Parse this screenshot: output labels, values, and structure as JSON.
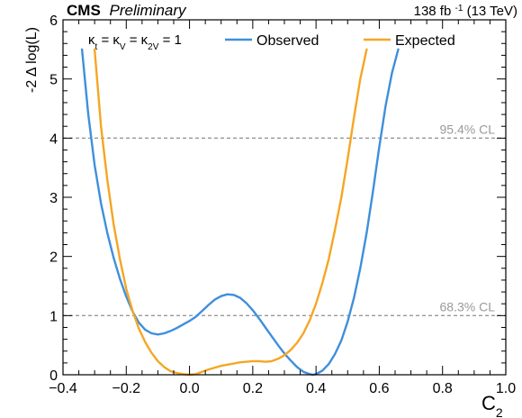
{
  "header": {
    "experiment": "CMS",
    "status": "Preliminary",
    "lumi": "138 fb",
    "lumi_exp": "-1",
    "energy": " (13 TeV)"
  },
  "chart_data": {
    "type": "line",
    "title": "",
    "xlabel": "C",
    "xlabel_sub": "2",
    "ylabel": "-2 Δ log(L)",
    "xlim": [
      -0.4,
      1.0
    ],
    "ylim": [
      0,
      6
    ],
    "x_ticks": [
      -0.4,
      -0.2,
      0.0,
      0.2,
      0.4,
      0.6,
      0.8,
      1.0
    ],
    "x_tick_labels": [
      "−0.4",
      "−0.2",
      "0.0",
      "0.2",
      "0.4",
      "0.6",
      "0.8",
      "1.0"
    ],
    "y_ticks": [
      0,
      1,
      2,
      3,
      4,
      5,
      6
    ],
    "y_tick_labels": [
      "0",
      "1",
      "2",
      "3",
      "4",
      "5",
      "6"
    ],
    "grid": false,
    "legend_position": "top",
    "condition_label": {
      "k1": "κ",
      "k1_sub": "t",
      "eq1": " = ",
      "k2": "κ",
      "k2_sub": "V",
      "eq2": " = ",
      "k3": "κ",
      "k3_sub": "2V",
      "eq3": " = 1"
    },
    "reference_lines": [
      {
        "y": 4,
        "label": "95.4% CL",
        "color": "#999999"
      },
      {
        "y": 1,
        "label": "68.3% CL",
        "color": "#999999"
      }
    ],
    "series": [
      {
        "name": "Observed",
        "color": "#3f8fdc",
        "points": [
          [
            -0.34,
            5.5
          ],
          [
            -0.32,
            4.4
          ],
          [
            -0.3,
            3.55
          ],
          [
            -0.28,
            2.9
          ],
          [
            -0.26,
            2.4
          ],
          [
            -0.24,
            1.98
          ],
          [
            -0.22,
            1.62
          ],
          [
            -0.2,
            1.32
          ],
          [
            -0.18,
            1.07
          ],
          [
            -0.16,
            0.88
          ],
          [
            -0.14,
            0.76
          ],
          [
            -0.12,
            0.7
          ],
          [
            -0.1,
            0.68
          ],
          [
            -0.08,
            0.7
          ],
          [
            -0.06,
            0.74
          ],
          [
            -0.04,
            0.79
          ],
          [
            -0.02,
            0.85
          ],
          [
            0.0,
            0.91
          ],
          [
            0.02,
            0.98
          ],
          [
            0.04,
            1.08
          ],
          [
            0.06,
            1.18
          ],
          [
            0.08,
            1.27
          ],
          [
            0.1,
            1.33
          ],
          [
            0.12,
            1.36
          ],
          [
            0.14,
            1.35
          ],
          [
            0.16,
            1.3
          ],
          [
            0.18,
            1.21
          ],
          [
            0.2,
            1.09
          ],
          [
            0.22,
            0.95
          ],
          [
            0.24,
            0.8
          ],
          [
            0.26,
            0.65
          ],
          [
            0.28,
            0.5
          ],
          [
            0.3,
            0.36
          ],
          [
            0.32,
            0.24
          ],
          [
            0.34,
            0.13
          ],
          [
            0.36,
            0.05
          ],
          [
            0.38,
            0.01
          ],
          [
            0.39,
            0.0
          ],
          [
            0.4,
            0.01
          ],
          [
            0.42,
            0.07
          ],
          [
            0.44,
            0.18
          ],
          [
            0.46,
            0.35
          ],
          [
            0.48,
            0.58
          ],
          [
            0.5,
            0.9
          ],
          [
            0.52,
            1.3
          ],
          [
            0.54,
            1.8
          ],
          [
            0.56,
            2.4
          ],
          [
            0.58,
            3.1
          ],
          [
            0.6,
            3.85
          ],
          [
            0.62,
            4.55
          ],
          [
            0.64,
            5.1
          ],
          [
            0.66,
            5.5
          ]
        ]
      },
      {
        "name": "Expected",
        "color": "#f5a623",
        "points": [
          [
            -0.3,
            5.5
          ],
          [
            -0.29,
            4.85
          ],
          [
            -0.28,
            4.2
          ],
          [
            -0.26,
            3.3
          ],
          [
            -0.24,
            2.55
          ],
          [
            -0.22,
            1.95
          ],
          [
            -0.2,
            1.45
          ],
          [
            -0.18,
            1.08
          ],
          [
            -0.16,
            0.78
          ],
          [
            -0.14,
            0.55
          ],
          [
            -0.12,
            0.37
          ],
          [
            -0.1,
            0.23
          ],
          [
            -0.08,
            0.13
          ],
          [
            -0.06,
            0.06
          ],
          [
            -0.04,
            0.03
          ],
          [
            -0.02,
            0.01
          ],
          [
            0.0,
            0.0
          ],
          [
            0.02,
            0.01
          ],
          [
            0.04,
            0.05
          ],
          [
            0.06,
            0.09
          ],
          [
            0.08,
            0.12
          ],
          [
            0.1,
            0.15
          ],
          [
            0.12,
            0.17
          ],
          [
            0.14,
            0.19
          ],
          [
            0.16,
            0.21
          ],
          [
            0.18,
            0.22
          ],
          [
            0.2,
            0.23
          ],
          [
            0.22,
            0.23
          ],
          [
            0.24,
            0.22
          ],
          [
            0.26,
            0.23
          ],
          [
            0.28,
            0.27
          ],
          [
            0.3,
            0.33
          ],
          [
            0.32,
            0.42
          ],
          [
            0.34,
            0.54
          ],
          [
            0.36,
            0.7
          ],
          [
            0.38,
            0.92
          ],
          [
            0.4,
            1.2
          ],
          [
            0.42,
            1.55
          ],
          [
            0.44,
            1.95
          ],
          [
            0.46,
            2.45
          ],
          [
            0.48,
            3.0
          ],
          [
            0.5,
            3.65
          ],
          [
            0.52,
            4.35
          ],
          [
            0.54,
            5.0
          ],
          [
            0.56,
            5.5
          ]
        ]
      }
    ]
  }
}
